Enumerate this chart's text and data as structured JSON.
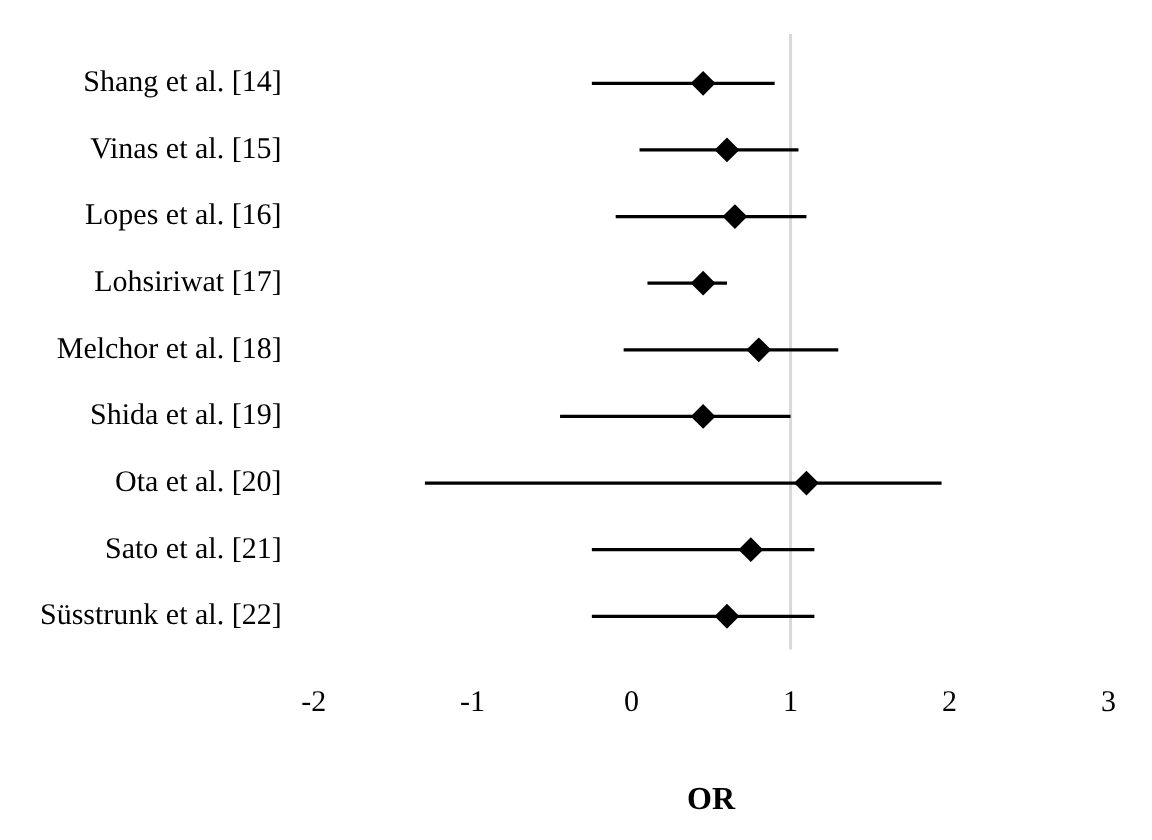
{
  "chart_data": {
    "type": "scatter",
    "orientation": "horizontal",
    "xlabel": "OR",
    "categories": [
      "Shang et al. [14]",
      "Vinas et al. [15]",
      "Lopes et al. [16]",
      "Lohsiriwat [17]",
      "Melchor et al. [18]",
      "Shida et al. [19]",
      "Ota et al. [20]",
      "Sato et al. [21]",
      "Süsstrunk et al. [22]"
    ],
    "values": [
      0.45,
      0.6,
      0.65,
      0.45,
      0.8,
      0.45,
      1.1,
      0.75,
      0.6
    ],
    "errors": [
      [
        -0.25,
        0.9
      ],
      [
        0.05,
        1.05
      ],
      [
        -0.1,
        1.1
      ],
      [
        0.1,
        0.6
      ],
      [
        -0.05,
        1.3
      ],
      [
        -0.45,
        1
      ],
      [
        -1.3,
        1.95
      ],
      [
        -0.25,
        1.15
      ],
      [
        -0.25,
        1.15
      ]
    ],
    "color": "#000000",
    "marker": "diamond",
    "xlim": [
      -2,
      3
    ],
    "xticks": [
      -2,
      -1,
      0,
      1,
      2,
      3
    ],
    "ref_lines": [
      {
        "axis": "x",
        "value": 1,
        "color": "#d9d9d9"
      }
    ],
    "grid": false,
    "legend": false
  }
}
